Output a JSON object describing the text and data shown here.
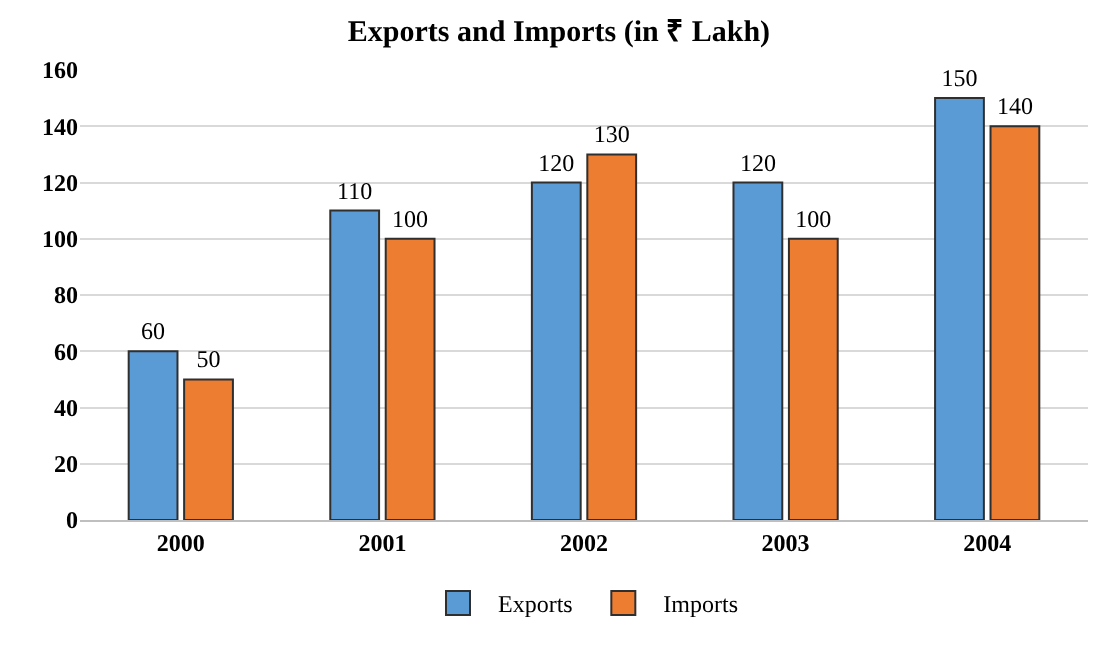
{
  "chart_data": {
    "type": "bar",
    "title": "Exports and Imports (in ₹ Lakh)",
    "categories": [
      "2000",
      "2001",
      "2002",
      "2003",
      "2004"
    ],
    "series": [
      {
        "name": "Exports",
        "color": "#5b9bd5",
        "values": [
          60,
          110,
          120,
          120,
          150
        ]
      },
      {
        "name": "Imports",
        "color": "#ed7d31",
        "values": [
          50,
          100,
          130,
          100,
          140
        ]
      }
    ],
    "ylim": [
      0,
      160
    ],
    "yticks": [
      0,
      20,
      40,
      60,
      80,
      100,
      120,
      140,
      160
    ],
    "grid": "y",
    "legend": "bottom",
    "data_labels": true
  }
}
